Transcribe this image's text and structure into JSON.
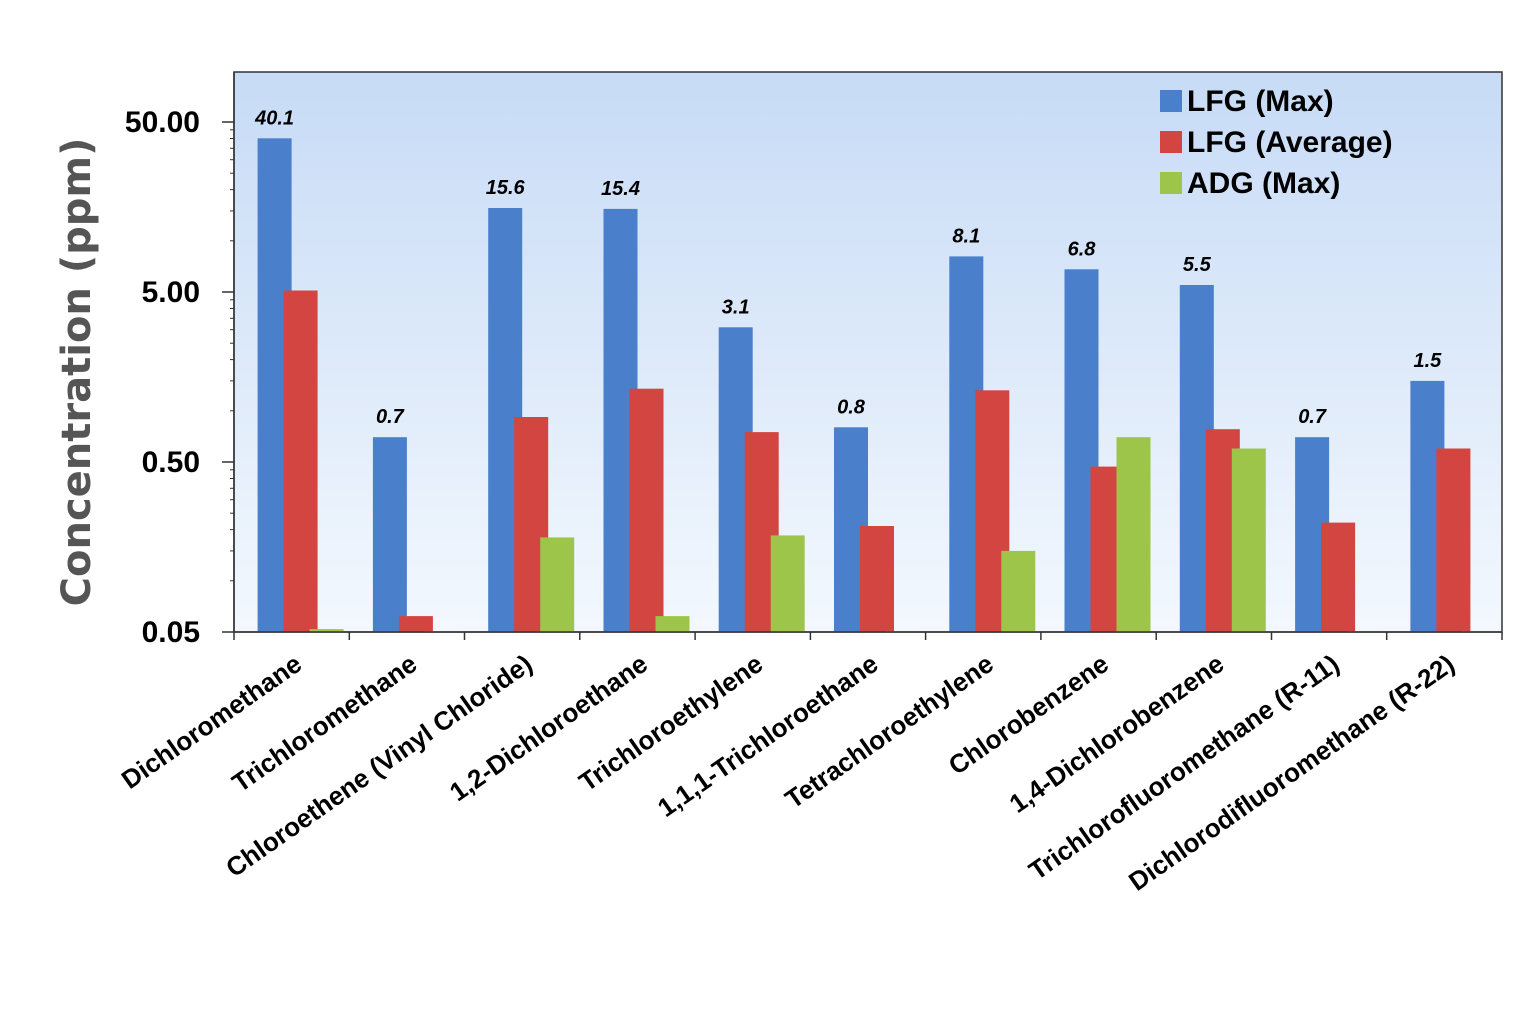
{
  "chart_data": {
    "type": "bar",
    "title": "",
    "xlabel": "",
    "ylabel": "Concentration (ppm)",
    "yscale": "log",
    "ylim": [
      0.05,
      100
    ],
    "yticks": [
      0.05,
      0.5,
      5,
      50
    ],
    "ytick_labels": [
      "0.05",
      "0.50",
      "5.00",
      "50.00"
    ],
    "grid": false,
    "legend_position": "top-right",
    "categories": [
      "Dichloromethane",
      "Trichloromethane",
      "Chloroethene (Vinyl Chloride)",
      "1,2-Dichloroethane",
      "Trichloroethylene",
      "1,1,1-Trichloroethane",
      "Tetrachloroethylene",
      "Chlorobenzene",
      "1,4-Dichlorobenzene",
      "Trichlorofluoromethane (R-11)",
      "Dichlorodifluoromethane (R-22)"
    ],
    "series": [
      {
        "name": "LFG (Max)",
        "color": "#4a7fcb",
        "values": [
          40.1,
          0.7,
          15.6,
          15.4,
          3.1,
          0.8,
          8.1,
          6.8,
          5.5,
          0.7,
          1.5
        ],
        "data_labels": [
          "40.1",
          "0.7",
          "15.6",
          "15.4",
          "3.1",
          "0.8",
          "8.1",
          "6.8",
          "5.5",
          "0.7",
          "1.5"
        ]
      },
      {
        "name": "LFG (Average)",
        "color": "#d24541",
        "values": [
          5.1,
          0.062,
          0.92,
          1.35,
          0.75,
          0.21,
          1.32,
          0.47,
          0.78,
          0.22,
          0.6
        ]
      },
      {
        "name": "ADG (Max)",
        "color": "#9dc54a",
        "values": [
          0.052,
          0.05,
          0.18,
          0.062,
          0.185,
          0.05,
          0.15,
          0.7,
          0.6,
          0.05,
          0.05
        ]
      }
    ]
  }
}
